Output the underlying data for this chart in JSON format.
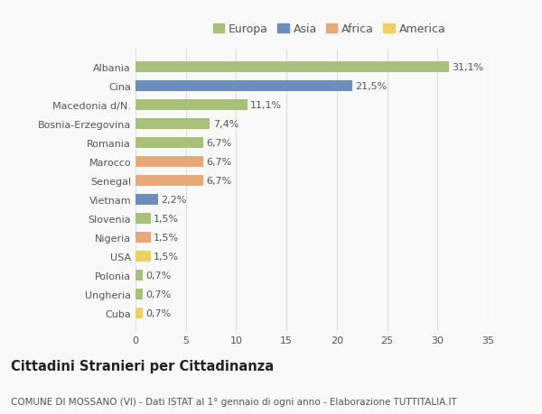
{
  "countries": [
    "Albania",
    "Cina",
    "Macedonia d/N.",
    "Bosnia-Erzegovina",
    "Romania",
    "Marocco",
    "Senegal",
    "Vietnam",
    "Slovenia",
    "Nigeria",
    "USA",
    "Polonia",
    "Ungheria",
    "Cuba"
  ],
  "values": [
    31.1,
    21.5,
    11.1,
    7.4,
    6.7,
    6.7,
    6.7,
    2.2,
    1.5,
    1.5,
    1.5,
    0.7,
    0.7,
    0.7
  ],
  "labels": [
    "31,1%",
    "21,5%",
    "11,1%",
    "7,4%",
    "6,7%",
    "6,7%",
    "6,7%",
    "2,2%",
    "1,5%",
    "1,5%",
    "1,5%",
    "0,7%",
    "0,7%",
    "0,7%"
  ],
  "continents": [
    "Europa",
    "Asia",
    "Europa",
    "Europa",
    "Europa",
    "Africa",
    "Africa",
    "Asia",
    "Europa",
    "Africa",
    "America",
    "Europa",
    "Europa",
    "America"
  ],
  "colors": {
    "Europa": "#a8c07a",
    "Asia": "#6b8ebf",
    "Africa": "#e8a97a",
    "America": "#f0d060"
  },
  "legend_order": [
    "Europa",
    "Asia",
    "Africa",
    "America"
  ],
  "title": "Cittadini Stranieri per Cittadinanza",
  "subtitle": "COMUNE DI MOSSANO (VI) - Dati ISTAT al 1° gennaio di ogni anno - Elaborazione TUTTITALIA.IT",
  "xlim": [
    0,
    35
  ],
  "xticks": [
    0,
    5,
    10,
    15,
    20,
    25,
    30,
    35
  ],
  "bg_color": "#f9f9f9",
  "grid_color": "#dddddd",
  "bar_height": 0.55,
  "label_fontsize": 8,
  "tick_fontsize": 8,
  "title_fontsize": 10.5,
  "subtitle_fontsize": 7.5,
  "legend_fontsize": 9
}
